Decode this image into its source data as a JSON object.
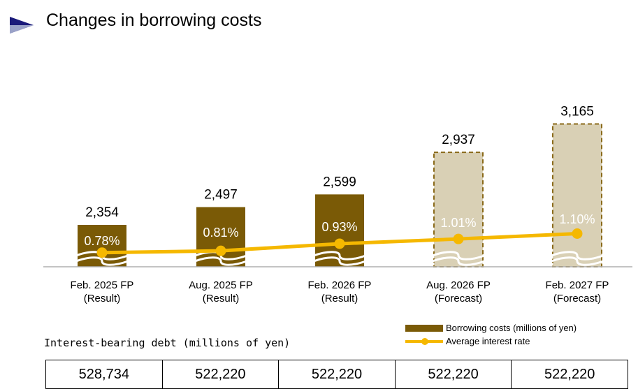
{
  "title": "Changes in borrowing costs",
  "chart_data": {
    "type": "bar",
    "categories": [
      [
        "Feb. 2025 FP",
        "(Result)"
      ],
      [
        "Aug. 2025 FP",
        "(Result)"
      ],
      [
        "Feb. 2026 FP",
        "(Result)"
      ],
      [
        "Aug. 2026 FP",
        "(Forecast)"
      ],
      [
        "Feb. 2027 FP",
        "(Forecast)"
      ]
    ],
    "series": [
      {
        "name": "Borrowing costs (millions of yen)",
        "type": "bar",
        "values": [
          2354,
          2497,
          2599,
          2937,
          3165
        ],
        "labels": [
          "2,354",
          "2,497",
          "2,599",
          "2,937",
          "3,165"
        ],
        "forecast": [
          false,
          false,
          false,
          true,
          true
        ]
      },
      {
        "name": "Average interest rate",
        "type": "line",
        "values": [
          0.78,
          0.81,
          0.93,
          1.01,
          1.1
        ],
        "labels": [
          "0.78%",
          "0.81%",
          "0.93%",
          "1.01%",
          "1.10%"
        ]
      }
    ],
    "legend_position": "bottom-right",
    "colors": {
      "result_bar": "#7a5a06",
      "forecast_bar": "#d9d0b5",
      "forecast_border": "#8a6a1a",
      "rate_line": "#f5b800"
    }
  },
  "debt": {
    "label": "Interest-bearing debt (millions of yen)",
    "values": [
      "528,734",
      "522,220",
      "522,220",
      "522,220",
      "522,220"
    ]
  }
}
